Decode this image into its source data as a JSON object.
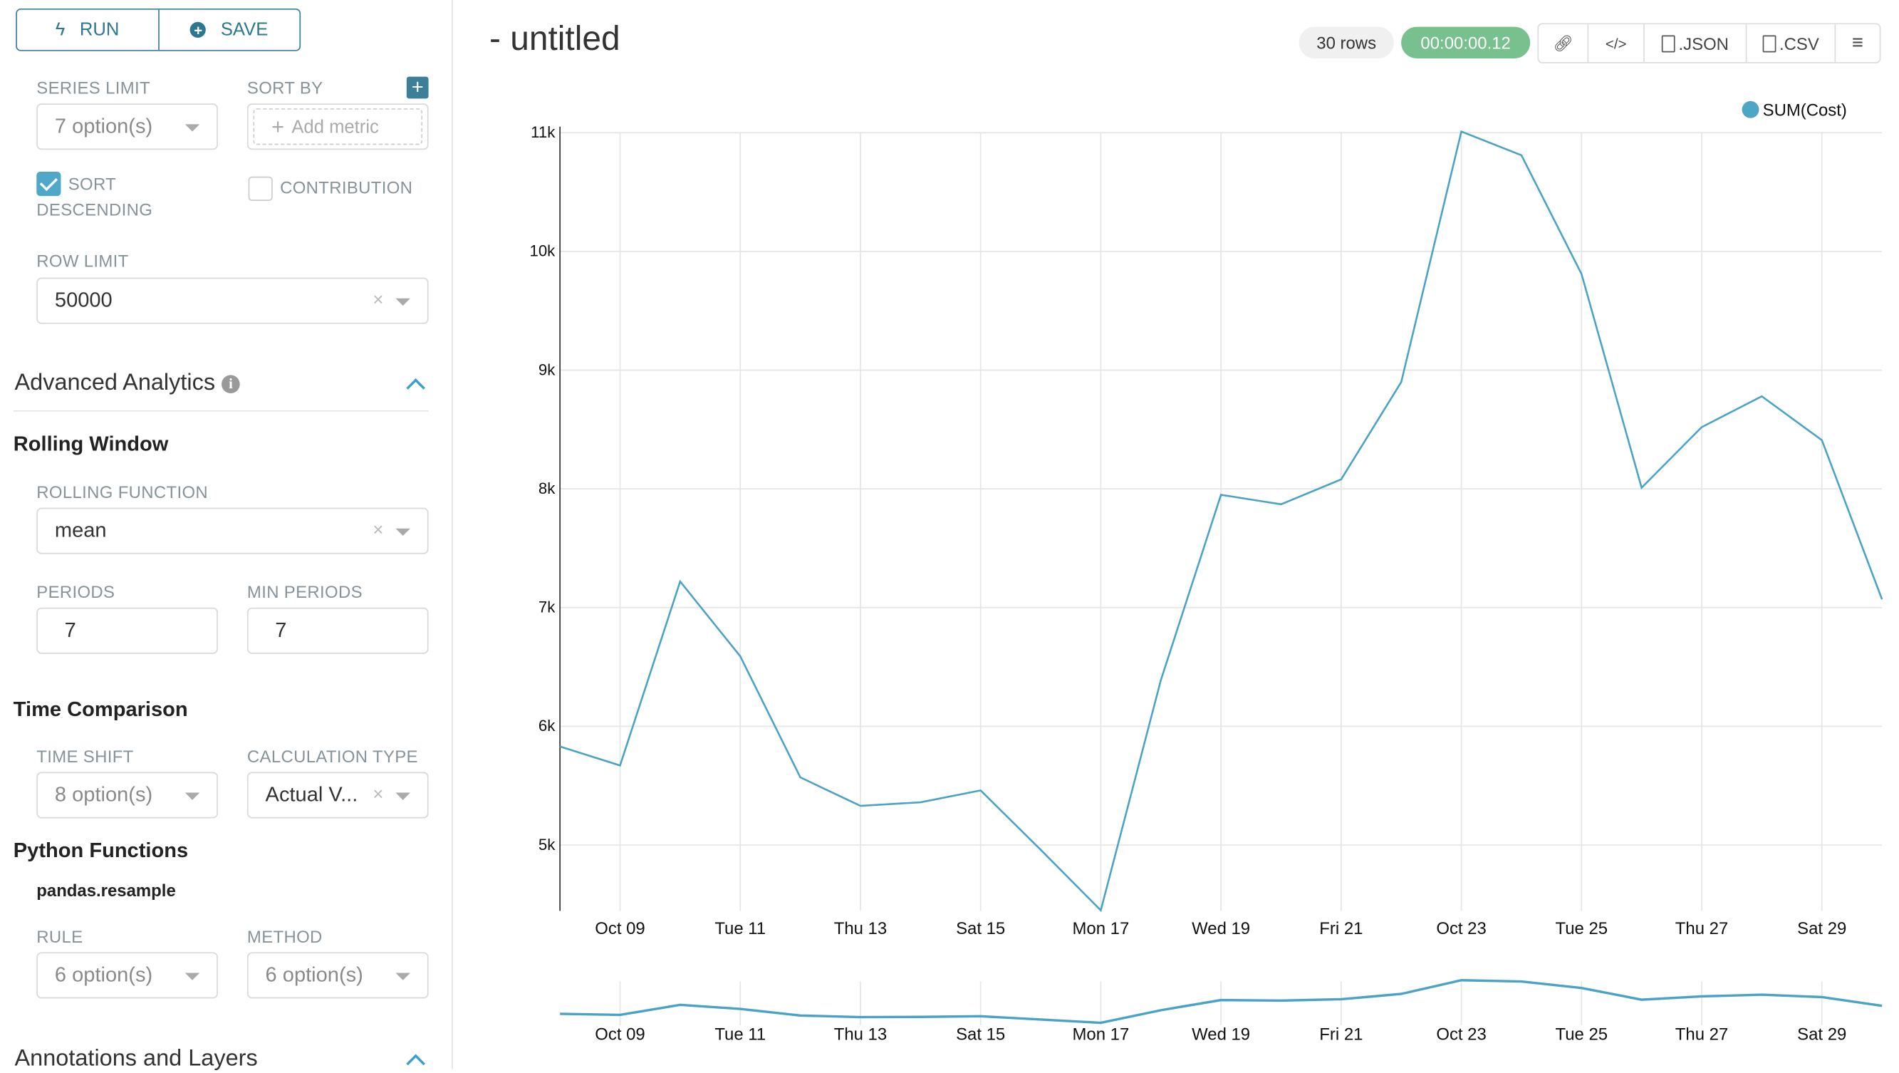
{
  "toolbar": {
    "run_label": "RUN",
    "save_label": "SAVE"
  },
  "sidebar": {
    "series_limit": {
      "label": "SERIES LIMIT",
      "value": "7 option(s)"
    },
    "sort_by": {
      "label": "SORT BY",
      "placeholder": "Add metric"
    },
    "sort_descending": {
      "label_line1": "SORT",
      "label_line2": "DESCENDING",
      "checked": true
    },
    "contribution": {
      "label": "CONTRIBUTION",
      "checked": false
    },
    "row_limit": {
      "label": "ROW LIMIT",
      "value": "50000"
    },
    "advanced_analytics": {
      "title": "Advanced Analytics",
      "expanded": true
    },
    "rolling_window": {
      "title": "Rolling Window",
      "function_label": "ROLLING FUNCTION",
      "function_value": "mean",
      "periods_label": "PERIODS",
      "periods_value": "7",
      "min_periods_label": "MIN PERIODS",
      "min_periods_value": "7"
    },
    "time_comparison": {
      "title": "Time Comparison",
      "time_shift_label": "TIME SHIFT",
      "time_shift_value": "8 option(s)",
      "calc_type_label": "CALCULATION TYPE",
      "calc_type_value": "Actual V..."
    },
    "python_functions": {
      "title": "Python Functions",
      "subtitle": "pandas.resample",
      "rule_label": "RULE",
      "rule_value": "6 option(s)",
      "method_label": "METHOD",
      "method_value": "6 option(s)"
    },
    "annotations": {
      "title": "Annotations and Layers",
      "expanded": true
    }
  },
  "header": {
    "title": "- untitled",
    "rows": "30 rows",
    "duration": "00:00:00.12",
    "json_label": ".JSON",
    "csv_label": ".CSV"
  },
  "colors": {
    "accent": "#2d7891",
    "line": "#4aa3c4",
    "success": "#79c08f",
    "checkbox": "#4fa8c9"
  },
  "chart_data": {
    "type": "line",
    "legend": {
      "position": "top-right",
      "entries": [
        "SUM(Cost)"
      ]
    },
    "series": [
      {
        "name": "SUM(Cost)",
        "color": "#4aa3c4",
        "x": [
          "2019-10-08",
          "2019-10-09",
          "2019-10-10",
          "2019-10-11",
          "2019-10-12",
          "2019-10-13",
          "2019-10-14",
          "2019-10-15",
          "2019-10-16",
          "2019-10-17",
          "2019-10-18",
          "2019-10-19",
          "2019-10-20",
          "2019-10-21",
          "2019-10-22",
          "2019-10-23",
          "2019-10-24",
          "2019-10-25",
          "2019-10-26",
          "2019-10-27",
          "2019-10-28",
          "2019-10-29",
          "2019-10-30"
        ],
        "values": [
          5830,
          5670,
          7220,
          6590,
          5570,
          5330,
          5360,
          5460,
          4960,
          4450,
          6390,
          7950,
          7870,
          8080,
          8900,
          11010,
          10810,
          9810,
          8010,
          8520,
          8780,
          8410,
          7070
        ]
      }
    ],
    "x_tick_labels": [
      "Oct 09",
      "Tue 11",
      "Thu 13",
      "Sat 15",
      "Mon 17",
      "Wed 19",
      "Fri 21",
      "Oct 23",
      "Tue 25",
      "Thu 27",
      "Sat 29"
    ],
    "y_tick_labels": [
      "5k",
      "6k",
      "7k",
      "8k",
      "9k",
      "10k",
      "11k"
    ],
    "y_ticks": [
      5000,
      6000,
      7000,
      8000,
      9000,
      10000,
      11000
    ],
    "ylim": [
      4450,
      11010
    ],
    "grid": true,
    "context_chart": true
  }
}
